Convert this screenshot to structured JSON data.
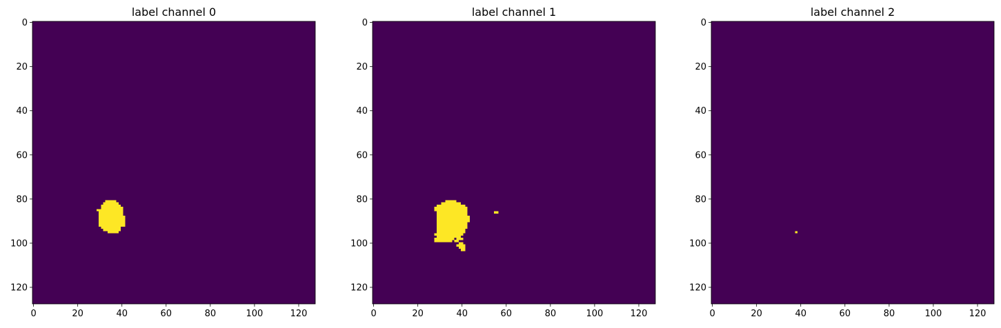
{
  "chart_data": [
    {
      "type": "heatmap",
      "title": "label channel 0",
      "xlabel": "",
      "ylabel": "",
      "xlim": [
        -0.5,
        127.5
      ],
      "ylim": [
        127.5,
        -0.5
      ],
      "xticks": [
        0,
        20,
        40,
        60,
        80,
        100,
        120
      ],
      "yticks": [
        0,
        20,
        40,
        60,
        80,
        100,
        120
      ],
      "grid": false,
      "colormap": "viridis",
      "background_value": 0,
      "background_color": "#440154",
      "foreground_value": 1,
      "foreground_color": "#fde725",
      "foreground_rows": [
        {
          "y": 81,
          "x0": 33,
          "x1": 37
        },
        {
          "y": 82,
          "x0": 32,
          "x1": 38
        },
        {
          "y": 83,
          "x0": 31,
          "x1": 39
        },
        {
          "y": 84,
          "x0": 31,
          "x1": 40
        },
        {
          "y": 85,
          "x0": 29,
          "x1": 40
        },
        {
          "y": 86,
          "x0": 30,
          "x1": 40
        },
        {
          "y": 87,
          "x0": 30,
          "x1": 40
        },
        {
          "y": 88,
          "x0": 30,
          "x1": 41
        },
        {
          "y": 89,
          "x0": 30,
          "x1": 41
        },
        {
          "y": 90,
          "x0": 30,
          "x1": 41
        },
        {
          "y": 91,
          "x0": 30,
          "x1": 41
        },
        {
          "y": 92,
          "x0": 30,
          "x1": 41
        },
        {
          "y": 93,
          "x0": 31,
          "x1": 39
        },
        {
          "y": 94,
          "x0": 32,
          "x1": 39
        },
        {
          "y": 95,
          "x0": 34,
          "x1": 38
        }
      ]
    },
    {
      "type": "heatmap",
      "title": "label channel 1",
      "xlabel": "",
      "ylabel": "",
      "xlim": [
        -0.5,
        127.5
      ],
      "ylim": [
        127.5,
        -0.5
      ],
      "xticks": [
        0,
        20,
        40,
        60,
        80,
        100,
        120
      ],
      "yticks": [
        0,
        20,
        40,
        60,
        80,
        100,
        120
      ],
      "grid": false,
      "colormap": "viridis",
      "background_value": 0,
      "background_color": "#440154",
      "foreground_value": 1,
      "foreground_color": "#fde725",
      "foreground_rows": [
        {
          "y": 81,
          "x0": 33,
          "x1": 37
        },
        {
          "y": 82,
          "x0": 31,
          "x1": 39
        },
        {
          "y": 83,
          "x0": 29,
          "x1": 41
        },
        {
          "y": 84,
          "x0": 28,
          "x1": 42
        },
        {
          "y": 85,
          "x0": 28,
          "x1": 42
        },
        {
          "y": 86,
          "x0": 29,
          "x1": 42
        },
        {
          "y": 86,
          "x0": 55,
          "x1": 56
        },
        {
          "y": 87,
          "x0": 29,
          "x1": 42
        },
        {
          "y": 88,
          "x0": 29,
          "x1": 43
        },
        {
          "y": 89,
          "x0": 29,
          "x1": 43
        },
        {
          "y": 90,
          "x0": 29,
          "x1": 43
        },
        {
          "y": 91,
          "x0": 29,
          "x1": 42
        },
        {
          "y": 92,
          "x0": 29,
          "x1": 42
        },
        {
          "y": 93,
          "x0": 29,
          "x1": 42
        },
        {
          "y": 94,
          "x0": 29,
          "x1": 41
        },
        {
          "y": 95,
          "x0": 29,
          "x1": 41
        },
        {
          "y": 96,
          "x0": 28,
          "x1": 40
        },
        {
          "y": 97,
          "x0": 29,
          "x1": 39
        },
        {
          "y": 98,
          "x0": 28,
          "x1": 36
        },
        {
          "y": 98,
          "x0": 38,
          "x1": 40
        },
        {
          "y": 99,
          "x0": 28,
          "x1": 35
        },
        {
          "y": 99,
          "x0": 37,
          "x1": 38
        },
        {
          "y": 100,
          "x0": 39,
          "x1": 40
        },
        {
          "y": 101,
          "x0": 38,
          "x1": 41
        },
        {
          "y": 102,
          "x0": 39,
          "x1": 41
        },
        {
          "y": 103,
          "x0": 40,
          "x1": 41
        }
      ]
    },
    {
      "type": "heatmap",
      "title": "label channel 2",
      "xlabel": "",
      "ylabel": "",
      "xlim": [
        -0.5,
        127.5
      ],
      "ylim": [
        127.5,
        -0.5
      ],
      "xticks": [
        0,
        20,
        40,
        60,
        80,
        100,
        120
      ],
      "yticks": [
        0,
        20,
        40,
        60,
        80,
        100,
        120
      ],
      "grid": false,
      "colormap": "viridis",
      "background_value": 0,
      "background_color": "#440154",
      "foreground_value": 1,
      "foreground_color": "#fde725",
      "foreground_rows": [
        {
          "y": 95,
          "x0": 38,
          "x1": 38
        }
      ]
    }
  ]
}
